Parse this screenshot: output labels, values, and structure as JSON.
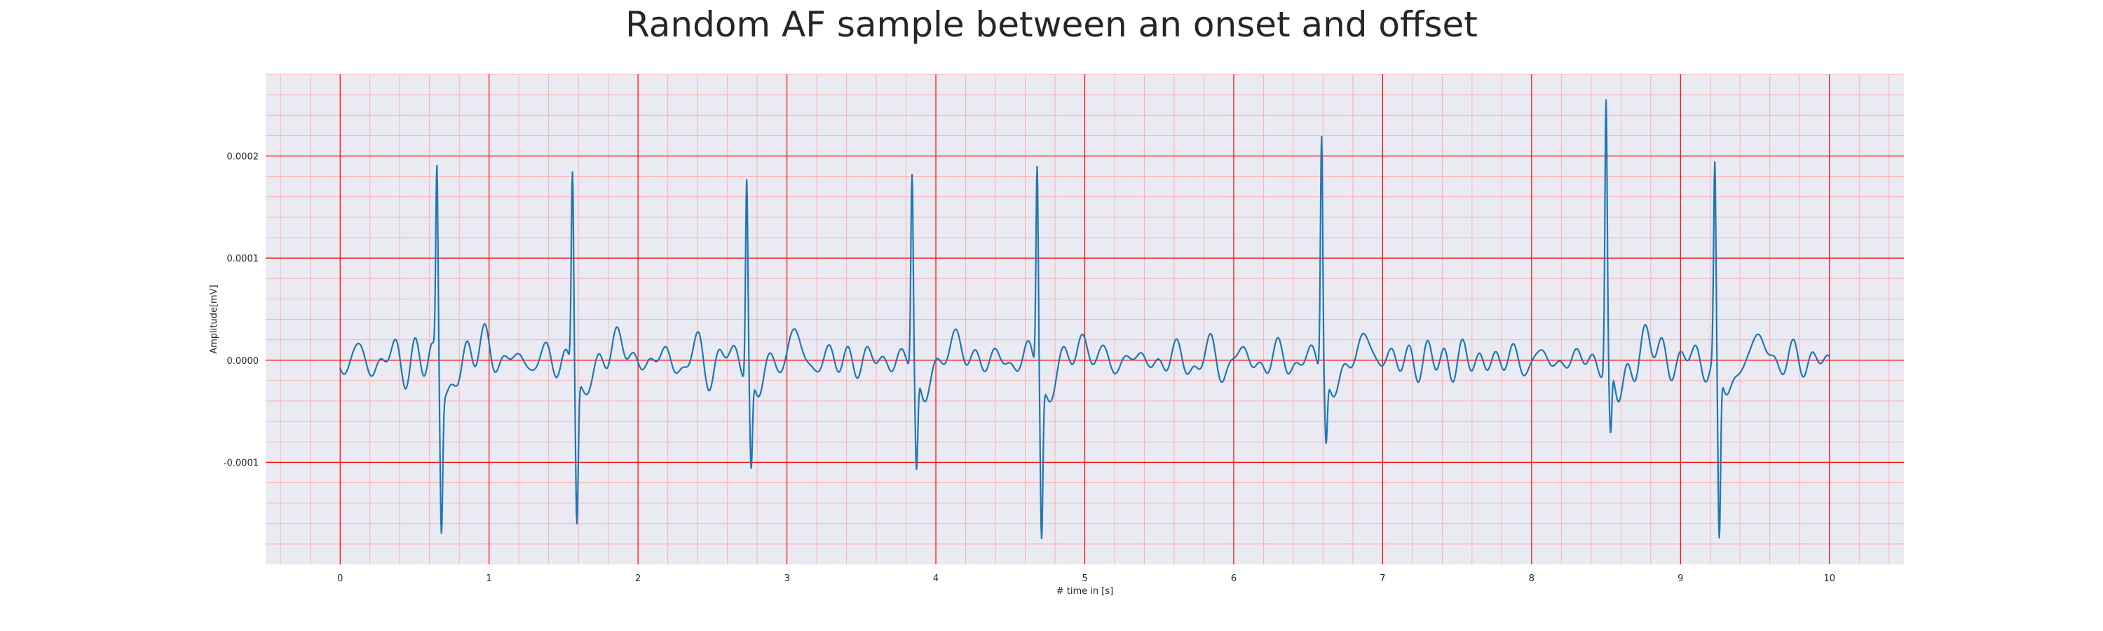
{
  "chart_data": {
    "type": "line",
    "title": "Random AF sample between an onset and offset",
    "xlabel": "# time in [s]",
    "ylabel": "Amplitude[mV]",
    "xlim": [
      -0.5,
      10.5
    ],
    "ylim": [
      -0.0002,
      0.00028
    ],
    "x_ticks": [
      0,
      1,
      2,
      3,
      4,
      5,
      6,
      7,
      8,
      9,
      10
    ],
    "y_ticks": [
      -0.0001,
      0.0,
      0.0001,
      0.0002
    ],
    "y_tick_labels": [
      "-0.0001",
      "0.0000",
      "0.0001",
      "0.0002"
    ],
    "grid": "major and minor",
    "colors": {
      "background": "#eaeaf2",
      "major_grid": "#ff0000",
      "minor_grid": "#ffb0b0",
      "line": "#1f77b4"
    },
    "series": [
      {
        "r_peaks": [
          {
            "t": 0.65,
            "peak": 0.000195,
            "trough": -0.000138
          },
          {
            "t": 1.56,
            "peak": 0.000195,
            "trough": -0.000141
          },
          {
            "t": 2.73,
            "peak": 0.000197,
            "trough": -8.8e-05
          },
          {
            "t": 3.84,
            "peak": 0.000192,
            "trough": -9.4e-05
          },
          {
            "t": 4.68,
            "peak": 0.000205,
            "trough": -0.000151
          },
          {
            "t": 6.59,
            "peak": 0.000235,
            "trough": -6.2e-05
          },
          {
            "t": 8.5,
            "peak": 0.000261,
            "trough": -7.1e-05
          },
          {
            "t": 9.23,
            "peak": 0.00019,
            "trough": -0.000169
          }
        ],
        "t_start": 0,
        "t_end": 10
      }
    ]
  }
}
